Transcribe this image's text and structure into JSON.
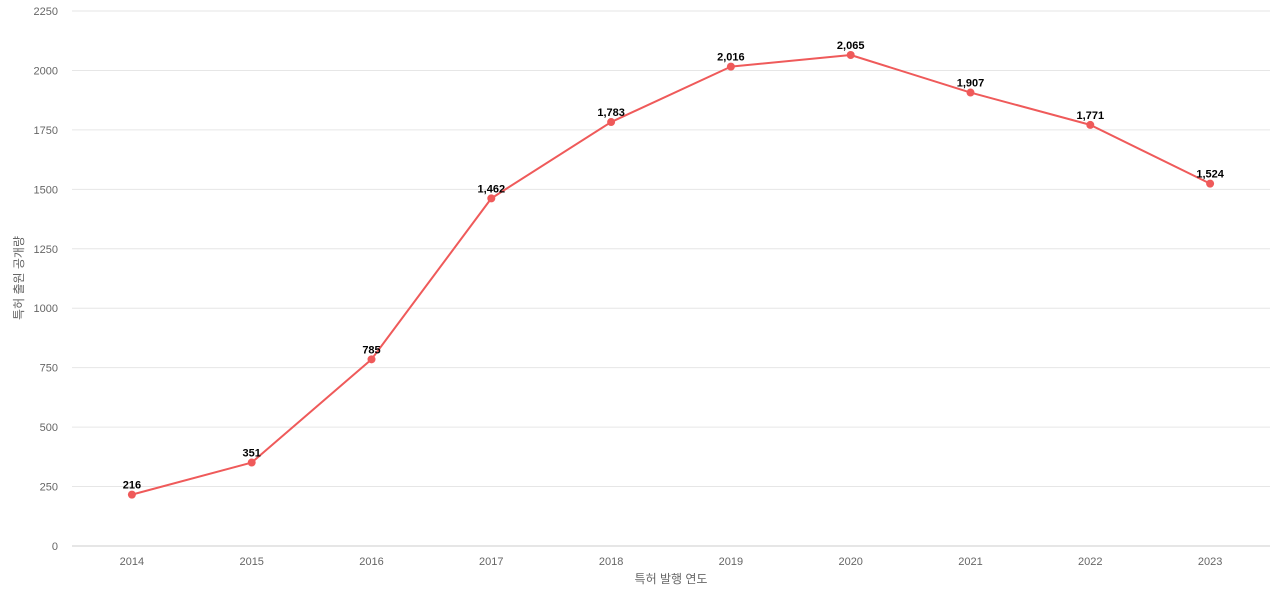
{
  "chart_data": {
    "type": "line",
    "x": [
      "2014",
      "2015",
      "2016",
      "2017",
      "2018",
      "2019",
      "2020",
      "2021",
      "2022",
      "2023"
    ],
    "series": [
      {
        "values": [
          216,
          351,
          785,
          1462,
          1783,
          2016,
          2065,
          1907,
          1771,
          1524
        ],
        "labels": [
          "216",
          "351",
          "785",
          "1,462",
          "1,783",
          "2,016",
          "2,065",
          "1,907",
          "1,771",
          "1,524"
        ],
        "color": "#ef5a5a"
      }
    ],
    "xlabel": "특허 발행 연도",
    "ylabel": "특허 출원 공개량",
    "ylim": [
      0,
      2250
    ],
    "yticks": [
      "0",
      "250",
      "500",
      "750",
      "1000",
      "1250",
      "1500",
      "1750",
      "2000",
      "2250"
    ],
    "grid": true,
    "legend": "none"
  }
}
